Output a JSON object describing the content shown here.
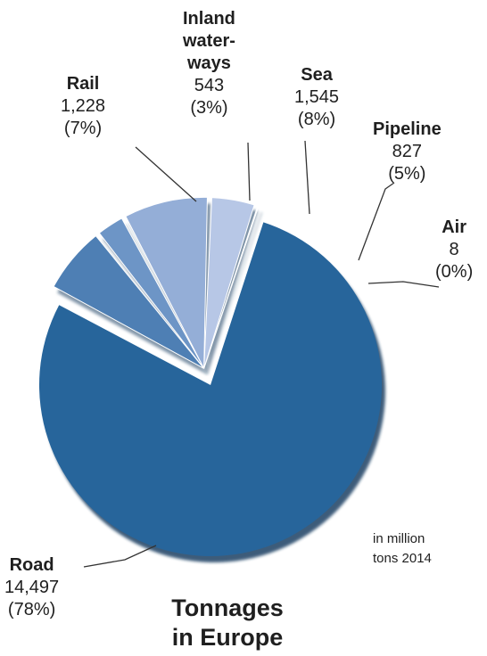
{
  "chart_data": {
    "type": "pie",
    "title": "Tonnages\nin Europe",
    "note": "in million\ntons 2014",
    "slices": [
      {
        "label": "Road",
        "value": 14497,
        "percent": "(78%)",
        "color": "#27659b"
      },
      {
        "label": "Rail",
        "value": 1228,
        "percent": "(7%)",
        "color": "#4e7fb4"
      },
      {
        "label": "Inland\nwater-\nways",
        "value": 543,
        "percent": "(3%)",
        "color": "#6d95c6"
      },
      {
        "label": "Sea",
        "value": 1545,
        "percent": "(8%)",
        "color": "#94aed7"
      },
      {
        "label": "Pipeline",
        "value": 827,
        "percent": "(5%)",
        "color": "#b7c7e6"
      },
      {
        "label": "Air",
        "value": 8,
        "percent": "(0%)",
        "color": "#d6e0f1"
      }
    ],
    "display_values": [
      "14,497",
      "1,228",
      "543",
      "1,545",
      "827",
      "8"
    ]
  }
}
